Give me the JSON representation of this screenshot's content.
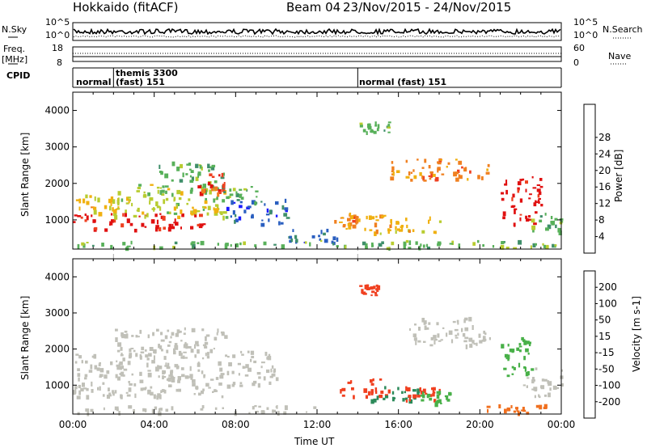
{
  "header": {
    "site": "Hokkaido (fitACF)",
    "beam": "Beam 04",
    "dates": "23/Nov/2015 - 24/Nov/2015"
  },
  "strip": {
    "nsky_label": "N.Sky",
    "nsearch_label": "N.Search",
    "nsky_ticks": [
      "10^5",
      "10^0"
    ],
    "nsearch_ticks": [
      "10^5",
      "10^0"
    ],
    "freq_label": "Freq.",
    "freq_unit": "[MHz]",
    "freq_ticks": [
      "18",
      "8"
    ],
    "nave_label": "Nave",
    "nave_ticks": [
      "60",
      "0"
    ],
    "cpid_label": "CPID",
    "cpid_segments": [
      {
        "label": "normal",
        "start_h": 0
      },
      {
        "label": "themis 3300",
        "start_h": 2,
        "sub": "(fast) 151"
      },
      {
        "label": "normal (fast) 151",
        "start_h": 14
      }
    ]
  },
  "chart_data": [
    {
      "type": "heatmap",
      "name": "power",
      "ylabel": "Slant Range [km]",
      "xlim": [
        0,
        24
      ],
      "ylim": [
        200,
        4500
      ],
      "yticks": [
        "1000",
        "2000",
        "3000",
        "4000"
      ],
      "colorbar_label": "Power [dB]",
      "colorbar_ticks": [
        "4",
        "8",
        "12",
        "16",
        "20",
        "24",
        "28"
      ],
      "colorscale": [
        "#1a1aff",
        "#2a5fc0",
        "#3f8f6a",
        "#58b05a",
        "#b8cc30",
        "#f0b010",
        "#f08020",
        "#ee4020",
        "#e01010"
      ],
      "regions": [
        {
          "t0": 0.0,
          "t1": 6.5,
          "r0": 750,
          "r1": 1200,
          "level": 28
        },
        {
          "t0": 0.0,
          "t1": 3.0,
          "r0": 1200,
          "r1": 1700,
          "level": 18
        },
        {
          "t0": 2.0,
          "t1": 7.5,
          "r0": 1100,
          "r1": 2000,
          "level": 16
        },
        {
          "t0": 4.0,
          "t1": 7.5,
          "r0": 1800,
          "r1": 2600,
          "level": 12
        },
        {
          "t0": 6.0,
          "t1": 7.6,
          "r0": 1700,
          "r1": 2300,
          "level": 26
        },
        {
          "t0": 7.5,
          "t1": 10.5,
          "r0": 900,
          "r1": 1600,
          "level": 6
        },
        {
          "t0": 7.0,
          "t1": 9.0,
          "r0": 1500,
          "r1": 2000,
          "level": 12
        },
        {
          "t0": 10.5,
          "t1": 13.0,
          "r0": 400,
          "r1": 800,
          "level": 6
        },
        {
          "t0": 12.8,
          "t1": 14.0,
          "r0": 850,
          "r1": 1200,
          "level": 22
        },
        {
          "t0": 13.0,
          "t1": 18.0,
          "r0": 650,
          "r1": 1150,
          "level": 20
        },
        {
          "t0": 14.0,
          "t1": 15.5,
          "r0": 3400,
          "r1": 3700,
          "level": 14
        },
        {
          "t0": 15.5,
          "t1": 20.5,
          "r0": 2100,
          "r1": 2700,
          "level": 22
        },
        {
          "t0": 21.0,
          "t1": 23.0,
          "r0": 900,
          "r1": 2200,
          "level": 28
        },
        {
          "t0": 22.5,
          "t1": 24.0,
          "r0": 700,
          "r1": 1200,
          "level": 12
        },
        {
          "t0": 0.0,
          "t1": 24.0,
          "r0": 250,
          "r1": 450,
          "level": 14
        }
      ]
    },
    {
      "type": "heatmap",
      "name": "velocity",
      "ylabel": "Slant Range [km]",
      "xlabel": "Time UT",
      "xlim": [
        0,
        24
      ],
      "ylim": [
        200,
        4500
      ],
      "xticks": [
        "00:00",
        "04:00",
        "08:00",
        "12:00",
        "16:00",
        "20:00",
        "00:00"
      ],
      "yticks": [
        "1000",
        "2000",
        "3000",
        "4000"
      ],
      "colorbar_label": "Velocity [m s-1]",
      "colorbar_ticks": [
        "200",
        "100",
        "50",
        "15",
        "-15",
        "-50",
        "-100",
        "-200"
      ],
      "colorscale": [
        "#2838c8",
        "#2c8a5a",
        "#48b048",
        "#7ad030",
        "#c0c0b8",
        "#f0a020",
        "#f07020",
        "#f04020",
        "#e01010"
      ],
      "regions": [
        {
          "t0": 0.0,
          "t1": 7.5,
          "r0": 700,
          "r1": 1300,
          "value": 0
        },
        {
          "t0": 2.0,
          "t1": 7.5,
          "r0": 1200,
          "r1": 2600,
          "value": 0
        },
        {
          "t0": 0.0,
          "t1": 2.5,
          "r0": 1300,
          "r1": 1900,
          "value": 0
        },
        {
          "t0": 7.5,
          "t1": 10.0,
          "r0": 1000,
          "r1": 2000,
          "value": 0
        },
        {
          "t0": 13.0,
          "t1": 15.5,
          "r0": 700,
          "r1": 1200,
          "value": -150
        },
        {
          "t0": 14.5,
          "t1": 17.0,
          "r0": 600,
          "r1": 1000,
          "value": 80
        },
        {
          "t0": 16.0,
          "t1": 18.0,
          "r0": 600,
          "r1": 1050,
          "value": -150
        },
        {
          "t0": 17.0,
          "t1": 18.5,
          "r0": 500,
          "r1": 850,
          "value": 40
        },
        {
          "t0": 14.0,
          "t1": 15.0,
          "r0": 3500,
          "r1": 3800,
          "value": -150
        },
        {
          "t0": 16.5,
          "t1": 20.5,
          "r0": 2100,
          "r1": 2900,
          "value": 0
        },
        {
          "t0": 21.0,
          "t1": 22.5,
          "r0": 1200,
          "r1": 2400,
          "value": 40
        },
        {
          "t0": 22.0,
          "t1": 24.0,
          "r0": 700,
          "r1": 1500,
          "value": 0
        },
        {
          "t0": 20.0,
          "t1": 24.0,
          "r0": 250,
          "r1": 500,
          "value": -50
        },
        {
          "t0": 0.0,
          "t1": 12.0,
          "r0": 250,
          "r1": 450,
          "value": 15
        }
      ]
    }
  ]
}
